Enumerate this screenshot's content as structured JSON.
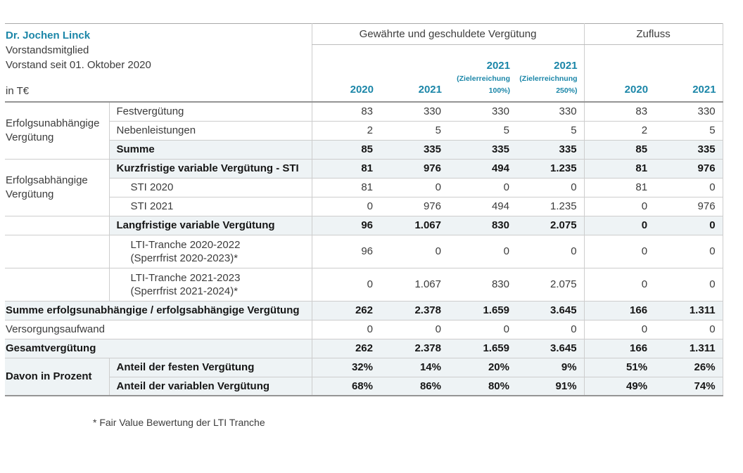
{
  "person": {
    "name": "Dr. Jochen Linck",
    "role": "Vorstandsmitglied",
    "tenure": "Vorstand seit 01. Oktober 2020",
    "unit": "in T€"
  },
  "header": {
    "group1": "Gewährte und geschuldete Vergütung",
    "group2": "Zufluss",
    "columns": [
      {
        "year": "2020"
      },
      {
        "year": "2021"
      },
      {
        "year": "2021",
        "note1": "(Zielerreichung",
        "note2": "100%)"
      },
      {
        "year": "2021",
        "note1": "(Zielerreichnung",
        "note2": "250%)"
      },
      {
        "year": "2020"
      },
      {
        "year": "2021"
      }
    ]
  },
  "table": {
    "rows": [
      {
        "group": {
          "text": "Erfolgsunabhängige Vergütung",
          "span": 3
        },
        "label": "Festvergütung",
        "values": [
          "83",
          "330",
          "330",
          "330",
          "83",
          "330"
        ]
      },
      {
        "label": "Nebenleistungen",
        "values": [
          "2",
          "5",
          "5",
          "5",
          "2",
          "5"
        ]
      },
      {
        "label": "Summe",
        "bold": true,
        "shaded": true,
        "values": [
          "85",
          "335",
          "335",
          "335",
          "85",
          "335"
        ]
      },
      {
        "group": {
          "text": "Erfolgsabhängige Vergütung",
          "span": 3
        },
        "label": "Kurzfristige variable Vergütung - STI",
        "bold": true,
        "shaded": true,
        "values": [
          "81",
          "976",
          "494",
          "1.235",
          "81",
          "976"
        ]
      },
      {
        "label": "STI 2020",
        "indent": true,
        "values": [
          "81",
          "0",
          "0",
          "0",
          "81",
          "0"
        ]
      },
      {
        "label": "STI 2021",
        "indent": true,
        "values": [
          "0",
          "976",
          "494",
          "1.235",
          "0",
          "976"
        ]
      },
      {
        "group": {
          "text": "",
          "span": 1
        },
        "label": "Langfristige variable Vergütung",
        "bold": true,
        "shaded": true,
        "values": [
          "96",
          "1.067",
          "830",
          "2.075",
          "0",
          "0"
        ]
      },
      {
        "group": {
          "text": "",
          "span": 1
        },
        "label": "LTI-Tranche 2020-2022",
        "label2": "(Sperrfrist 2020-2023)*",
        "indent": true,
        "tall": true,
        "values": [
          "96",
          "0",
          "0",
          "0",
          "0",
          "0"
        ]
      },
      {
        "group": {
          "text": "",
          "span": 1
        },
        "label": "LTI-Tranche 2021-2023",
        "label2": "(Sperrfrist 2021-2024)*",
        "indent": true,
        "tall": true,
        "values": [
          "0",
          "1.067",
          "830",
          "2.075",
          "0",
          "0"
        ]
      },
      {
        "label": "Summe erfolgsunabhängige / erfolgsabhängige Vergütung",
        "wide": true,
        "bold": true,
        "shaded": true,
        "values": [
          "262",
          "2.378",
          "1.659",
          "3.645",
          "166",
          "1.311"
        ]
      },
      {
        "label": "Versorgungsaufwand",
        "wide": true,
        "values": [
          "0",
          "0",
          "0",
          "0",
          "0",
          "0"
        ]
      },
      {
        "label": "Gesamtvergütung",
        "wide": true,
        "bold": true,
        "shaded": true,
        "values": [
          "262",
          "2.378",
          "1.659",
          "3.645",
          "166",
          "1.311"
        ]
      },
      {
        "group": {
          "text": "Davon in Prozent",
          "span": 2,
          "bold": true,
          "shaded": true
        },
        "label": "Anteil der festen Vergütung",
        "bold": true,
        "shaded": true,
        "values": [
          "32%",
          "14%",
          "20%",
          "9%",
          "51%",
          "26%"
        ]
      },
      {
        "label": "Anteil der variablen Vergütung",
        "bold": true,
        "shaded": true,
        "values": [
          "68%",
          "86%",
          "80%",
          "91%",
          "49%",
          "74%"
        ]
      }
    ]
  },
  "footnote": "* Fair Value Bewertung der LTI Tranche",
  "colors": {
    "accent": "#1B86A8",
    "row_shade": "#EEF3F5"
  }
}
